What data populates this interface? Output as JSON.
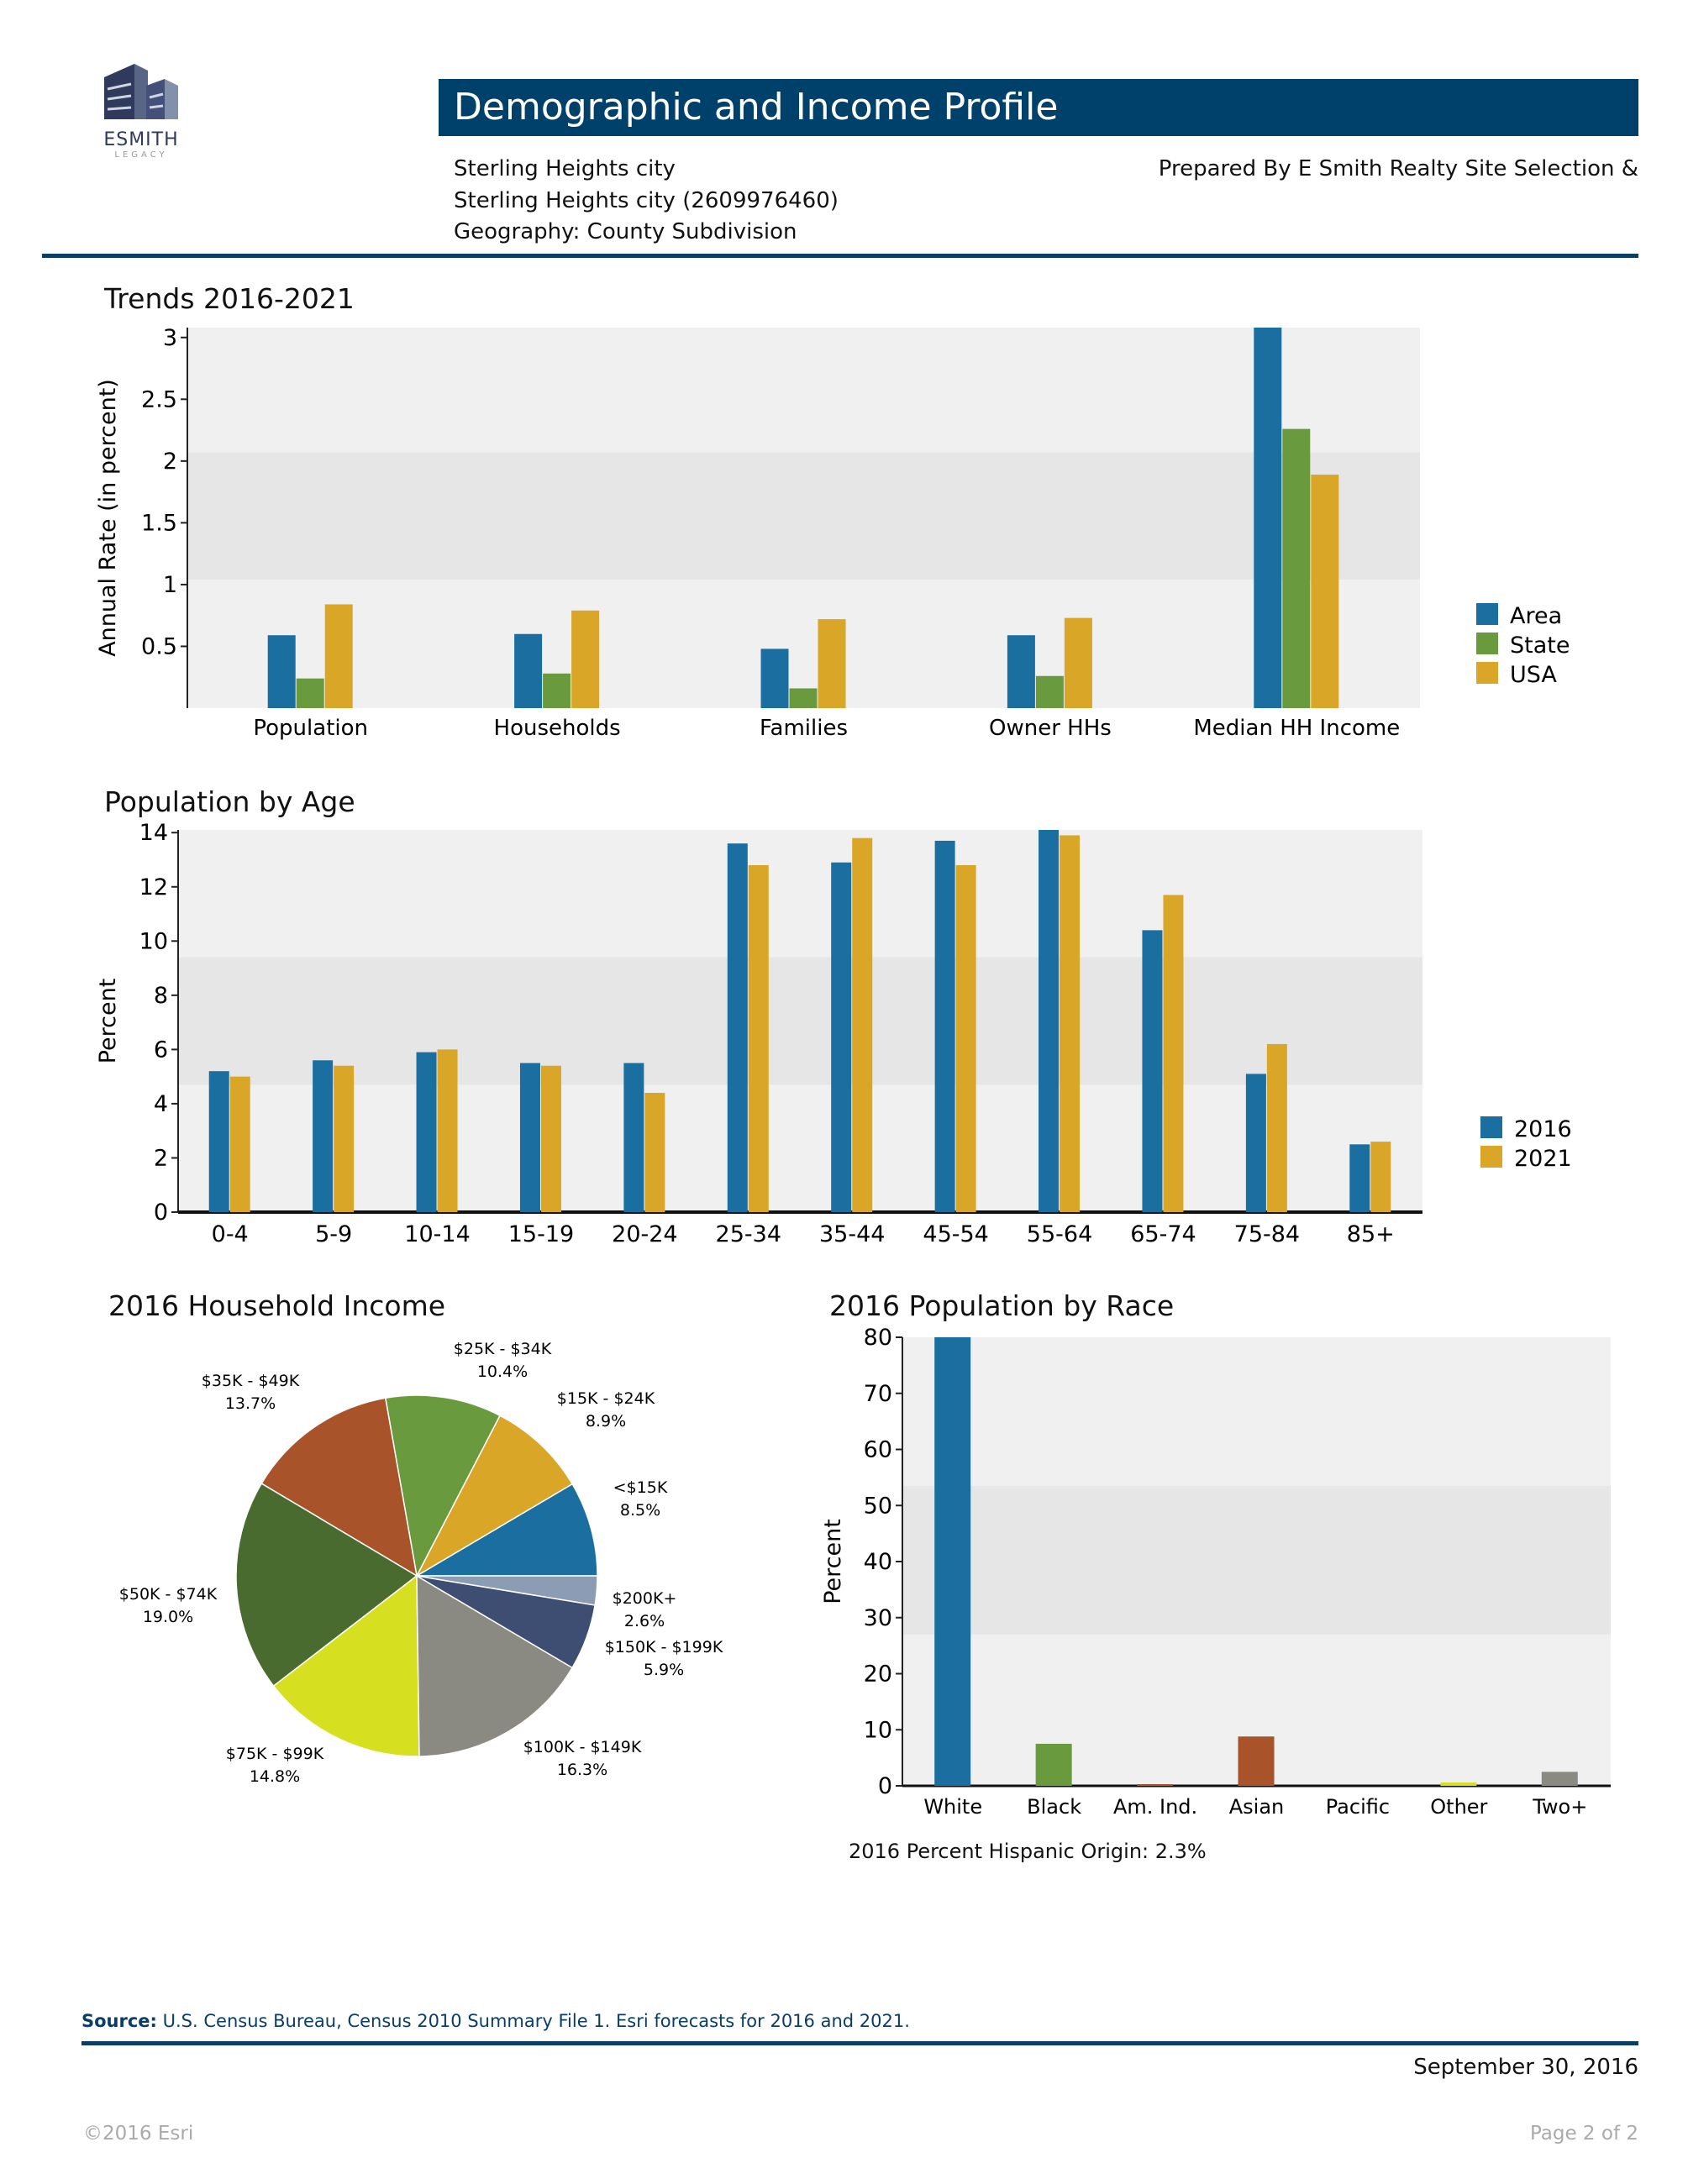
{
  "logo": {
    "text": "ESMITH",
    "subtext": "LEGACY"
  },
  "header": {
    "title": "Demographic and Income Profile",
    "lines": [
      "Sterling Heights city",
      "Sterling Heights city (2609976460)",
      "Geography: County Subdivision"
    ],
    "prepared_by": "Prepared By E Smith Realty Site Selection &"
  },
  "colors": {
    "area": "#1a6fa0",
    "state": "#6a9a3e",
    "usa": "#d9a628",
    "header": "#00416b",
    "plot_bg": "#f0f0f0",
    "plot_band": "#e6e6e6"
  },
  "chart_data": [
    {
      "type": "bar",
      "title": "Trends 2016-2021",
      "ylabel": "Annual Rate (in percent)",
      "categories": [
        "Population",
        "Households",
        "Families",
        "Owner HHs",
        "Median HH Income"
      ],
      "yticks": [
        "0.5",
        "1",
        "1.5",
        "2",
        "2.5",
        "3"
      ],
      "ylim": [
        0,
        3.08
      ],
      "legend_position": "right",
      "series": [
        {
          "name": "Area",
          "color": "#1a6fa0",
          "values": [
            0.59,
            0.6,
            0.48,
            0.59,
            3.1
          ]
        },
        {
          "name": "State",
          "color": "#6a9a3e",
          "values": [
            0.24,
            0.28,
            0.16,
            0.26,
            2.26
          ]
        },
        {
          "name": "USA",
          "color": "#d9a628",
          "values": [
            0.84,
            0.79,
            0.72,
            0.73,
            1.89
          ]
        }
      ]
    },
    {
      "type": "bar",
      "title": "Population by Age",
      "ylabel": "Percent",
      "categories": [
        "0-4",
        "5-9",
        "10-14",
        "15-19",
        "20-24",
        "25-34",
        "35-44",
        "45-54",
        "55-64",
        "65-74",
        "75-84",
        "85+"
      ],
      "yticks": [
        "0",
        "2",
        "4",
        "6",
        "8",
        "10",
        "12",
        "14"
      ],
      "ylim": [
        0,
        14.1
      ],
      "legend_position": "right",
      "series": [
        {
          "name": "2016",
          "color": "#1a6fa0",
          "values": [
            5.2,
            5.6,
            5.9,
            5.5,
            5.5,
            13.6,
            12.9,
            13.7,
            14.1,
            10.4,
            5.1,
            2.5
          ]
        },
        {
          "name": "2021",
          "color": "#d9a628",
          "values": [
            5.0,
            5.4,
            6.0,
            5.4,
            4.4,
            12.8,
            13.8,
            12.8,
            13.9,
            11.7,
            6.2,
            2.6
          ]
        }
      ]
    },
    {
      "type": "pie",
      "title": "2016 Household Income",
      "slices": [
        {
          "label": "<$15K",
          "value": 8.5,
          "display": "8.5%",
          "color": "#1a6fa0"
        },
        {
          "label": "$15K - $24K",
          "value": 8.9,
          "display": "8.9%",
          "color": "#d9a628"
        },
        {
          "label": "$25K - $34K",
          "value": 10.4,
          "display": "10.4%",
          "color": "#6a9a3e"
        },
        {
          "label": "$35K - $49K",
          "value": 13.7,
          "display": "13.7%",
          "color": "#a9532a"
        },
        {
          "label": "$50K - $74K",
          "value": 19.0,
          "display": "19.0%",
          "color": "#4a6b30"
        },
        {
          "label": "$75K - $99K",
          "value": 14.8,
          "display": "14.8%",
          "color": "#d6e020"
        },
        {
          "label": "$100K - $149K",
          "value": 16.3,
          "display": "16.3%",
          "color": "#8a8a82"
        },
        {
          "label": "$150K - $199K",
          "value": 5.9,
          "display": "5.9%",
          "color": "#3d4e72"
        },
        {
          "label": "$200K+",
          "value": 2.6,
          "display": "2.6%",
          "color": "#8c9cb5"
        }
      ]
    },
    {
      "type": "bar",
      "title": "2016 Population by Race",
      "ylabel": "Percent",
      "categories": [
        "White",
        "Black",
        "Am. Ind.",
        "Asian",
        "Pacific",
        "Other",
        "Two+"
      ],
      "yticks": [
        "0",
        "10",
        "20",
        "30",
        "40",
        "50",
        "60",
        "70",
        "80"
      ],
      "ylim": [
        0,
        80
      ],
      "values": [
        81,
        7.5,
        0.3,
        8.8,
        0.0,
        0.6,
        2.5
      ],
      "colors": [
        "#1a6fa0",
        "#6a9a3e",
        "#a9532a",
        "#a9532a",
        "#3d4e72",
        "#d6e020",
        "#8a8a82"
      ],
      "note": "2016 Percent Hispanic Origin: 2.3%"
    }
  ],
  "footer": {
    "source_label": "Source:",
    "source_text": " U.S. Census Bureau, Census 2010 Summary File 1.  Esri forecasts for 2016 and 2021.",
    "date": "September 30, 2016",
    "copyright": "©2016 Esri",
    "page": "Page 2 of 2"
  }
}
